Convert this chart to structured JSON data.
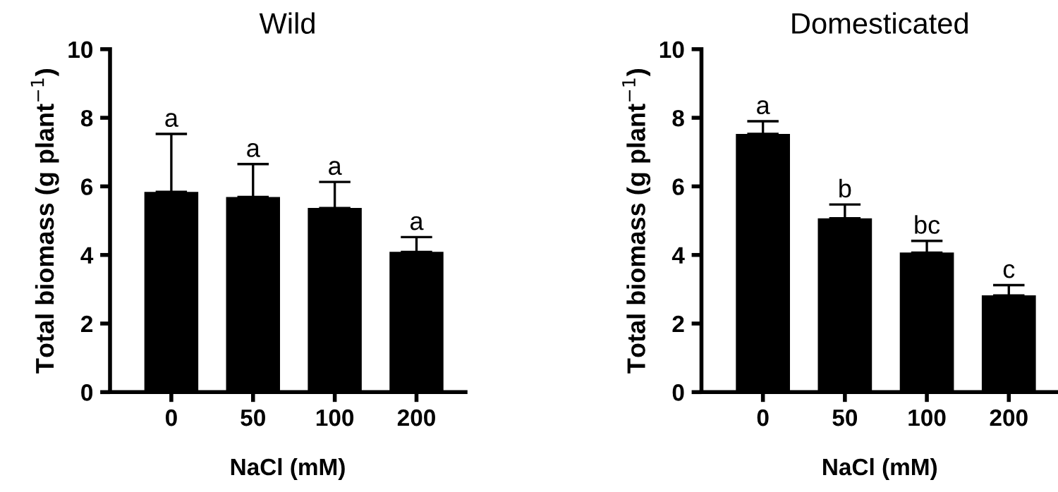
{
  "chart_data": [
    {
      "type": "bar",
      "title": "Wild",
      "xlabel": "NaCl (mM)",
      "ylabel": "Total biomass (g plant$^{−1}$)",
      "categories": [
        "0",
        "50",
        "100",
        "200"
      ],
      "color": "#000000",
      "values": [
        5.84,
        5.69,
        5.37,
        4.09
      ],
      "errors": [
        [
          5.84,
          7.53
        ],
        [
          5.69,
          6.65
        ],
        [
          5.37,
          6.13
        ],
        [
          4.09,
          4.52
        ]
      ],
      "ylim": [
        0,
        10
      ],
      "yticks": [
        0,
        2,
        4,
        6,
        8,
        10
      ],
      "grid": false,
      "legend": false,
      "annotations": [
        "a",
        "a",
        "a",
        "a"
      ]
    },
    {
      "type": "bar",
      "title": "Domesticated",
      "xlabel": "NaCl (mM)",
      "ylabel": "Total biomass (g plant$^{−1}$)",
      "categories": [
        "0",
        "50",
        "100",
        "200"
      ],
      "color": "#000000",
      "values": [
        7.53,
        5.07,
        4.07,
        2.82
      ],
      "errors": [
        [
          7.53,
          7.9
        ],
        [
          5.07,
          5.47
        ],
        [
          4.07,
          4.41
        ],
        [
          2.82,
          3.12
        ]
      ],
      "ylim": [
        0,
        10
      ],
      "yticks": [
        0,
        2,
        4,
        6,
        8,
        10
      ],
      "grid": false,
      "legend": false,
      "annotations": [
        "a",
        "b",
        "bc",
        "c"
      ]
    }
  ]
}
